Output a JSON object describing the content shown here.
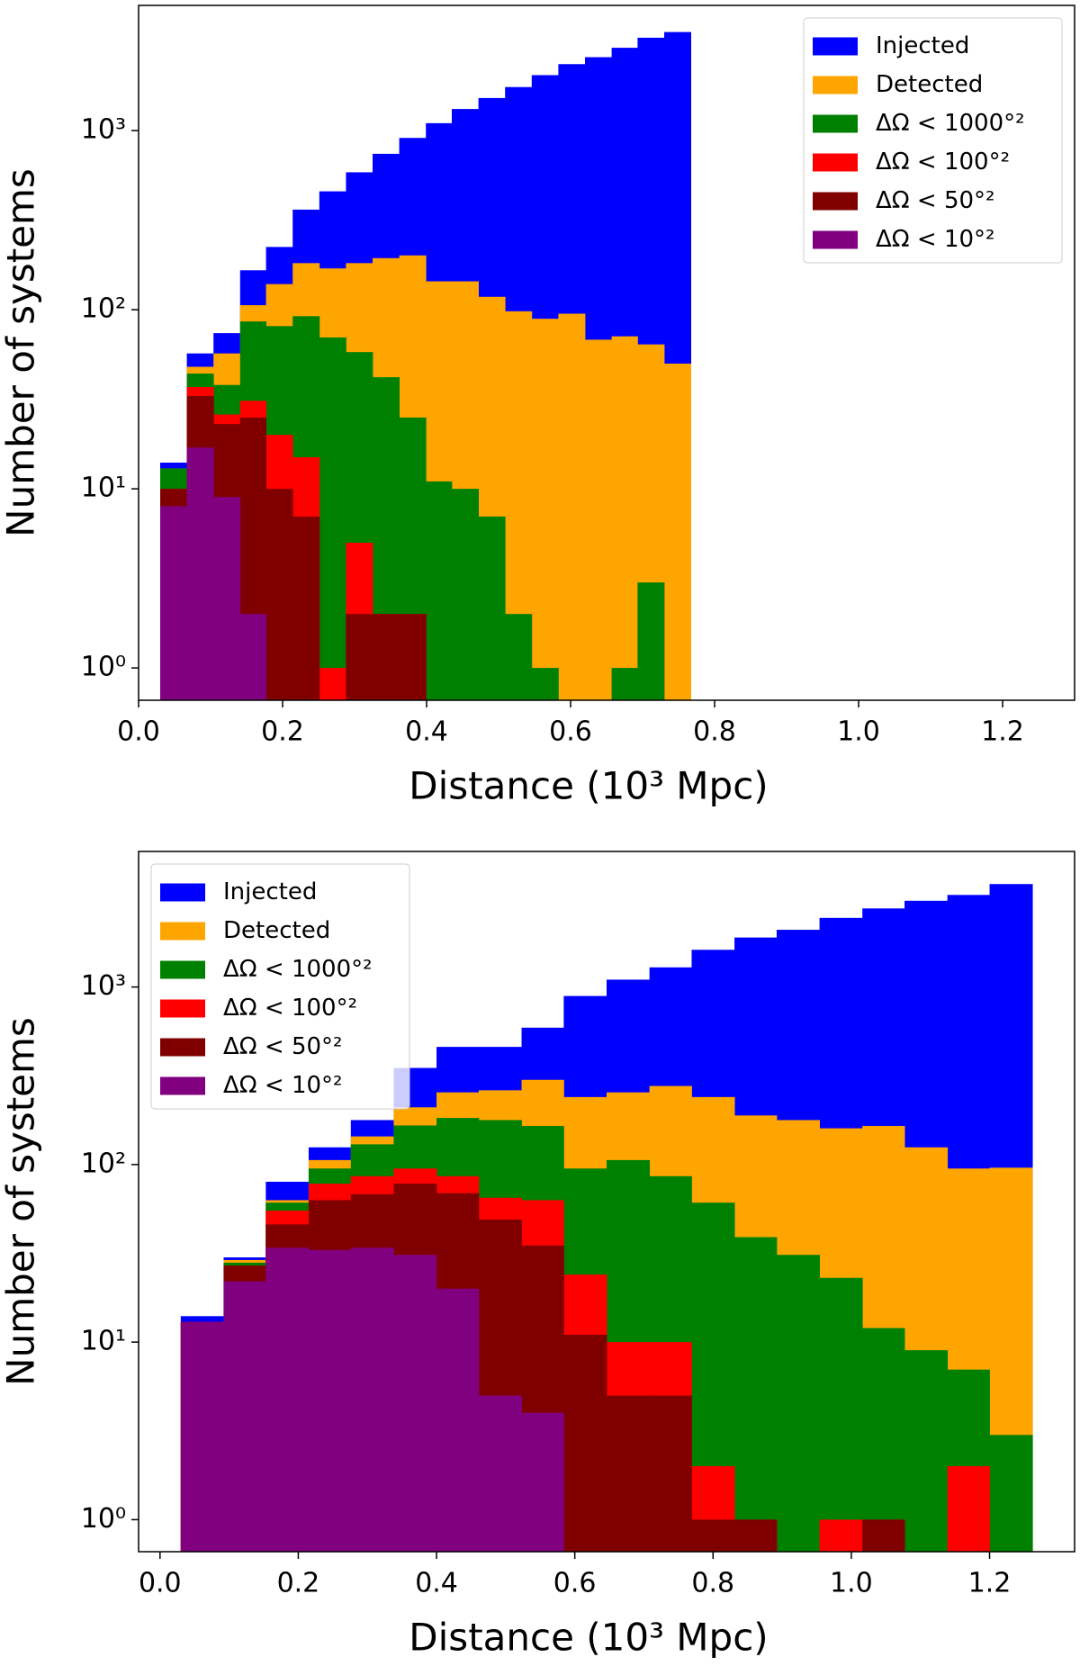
{
  "chart_data": [
    {
      "type": "histogram",
      "log_y": true,
      "legend": "upper right",
      "x_label": "Distance (10³ Mpc)",
      "y_label": "Number of systems",
      "xlim": [
        0,
        1.3
      ],
      "xticks": [
        {
          "value": 0,
          "label": "0.0"
        },
        0.2,
        0.4,
        0.6,
        0.8,
        {
          "value": 1,
          "label": "1.0"
        },
        1.2
      ],
      "ylim": [
        0.66,
        5000
      ],
      "yticks": [
        {
          "value": 1,
          "label": "10⁰"
        },
        {
          "value": 10,
          "label": "10¹"
        },
        {
          "value": 100,
          "label": "10²"
        },
        {
          "value": 1000,
          "label": "10³"
        }
      ],
      "bins": [
        0.03,
        0.067,
        0.104,
        0.141,
        0.177,
        0.214,
        0.251,
        0.288,
        0.325,
        0.362,
        0.399,
        0.435,
        0.472,
        0.509,
        0.546,
        0.583,
        0.62,
        0.657,
        0.693,
        0.73,
        0.767
      ],
      "series": [
        {
          "name": "Injected",
          "color": "#0000ff",
          "values": [
            14,
            57,
            74,
            166,
            224,
            362,
            458,
            585,
            742,
            910,
            1100,
            1320,
            1520,
            1750,
            2040,
            2350,
            2570,
            2900,
            3300,
            3550
          ]
        },
        {
          "name": "Detected",
          "color": "#ffa500",
          "values": [
            13,
            48,
            57,
            106,
            139,
            182,
            170,
            182,
            194,
            201,
            144,
            144,
            118,
            98,
            89,
            95,
            68,
            71,
            64,
            50
          ]
        },
        {
          "name": "ΔΩ < 1000°²",
          "color": "#008000",
          "values": [
            13,
            44,
            38,
            86,
            81,
            92,
            70,
            58,
            42,
            25,
            11,
            10,
            7,
            2,
            1,
            0,
            0,
            1,
            3,
            0
          ]
        },
        {
          "name": "ΔΩ < 100°²",
          "color": "#ff0000",
          "values": [
            10,
            37,
            26,
            31,
            20,
            15,
            1,
            5,
            2,
            2,
            0,
            0,
            0,
            0,
            0,
            0,
            0,
            0,
            0,
            0
          ]
        },
        {
          "name": "ΔΩ < 50°²",
          "color": "#800000",
          "values": [
            10,
            33,
            23,
            25,
            10,
            7,
            0,
            2,
            2,
            2,
            0,
            0,
            0,
            0,
            0,
            0,
            0,
            0,
            0,
            0
          ]
        },
        {
          "name": "ΔΩ < 10°²",
          "color": "#800080",
          "values": [
            8,
            17,
            9,
            2,
            0,
            0,
            0,
            0,
            0,
            0,
            0,
            0,
            0,
            0,
            0,
            0,
            0,
            0,
            0,
            0
          ]
        }
      ]
    },
    {
      "type": "histogram",
      "log_y": true,
      "legend": "upper left",
      "x_label": "Distance (10³ Mpc)",
      "y_label": "Number of systems",
      "xlim": [
        -0.031,
        1.323
      ],
      "xticks": [
        {
          "value": 0,
          "label": "0.0"
        },
        0.2,
        0.4,
        0.6,
        0.8,
        {
          "value": 1,
          "label": "1.0"
        },
        1.2
      ],
      "ylim": [
        0.66,
        5800
      ],
      "yticks": [
        {
          "value": 1,
          "label": "10⁰"
        },
        {
          "value": 10,
          "label": "10¹"
        },
        {
          "value": 100,
          "label": "10²"
        },
        {
          "value": 1000,
          "label": "10³"
        }
      ],
      "bins": [
        0.03,
        0.092,
        0.153,
        0.215,
        0.276,
        0.338,
        0.4,
        0.461,
        0.523,
        0.584,
        0.646,
        0.708,
        0.769,
        0.831,
        0.892,
        0.954,
        1.016,
        1.077,
        1.139,
        1.2,
        1.262
      ],
      "series": [
        {
          "name": "Injected",
          "color": "#0000ff",
          "values": [
            14,
            30,
            80,
            125,
            178,
            350,
            460,
            460,
            590,
            890,
            1100,
            1290,
            1620,
            1900,
            2100,
            2450,
            2770,
            3060,
            3300,
            3800
          ]
        },
        {
          "name": "Detected",
          "color": "#ffa500",
          "values": [
            13,
            29,
            63,
            106,
            144,
            210,
            255,
            262,
            300,
            240,
            255,
            277,
            240,
            189,
            178,
            160,
            165,
            125,
            95,
            96
          ]
        },
        {
          "name": "ΔΩ < 1000°²",
          "color": "#008000",
          "values": [
            13,
            28,
            61,
            95,
            130,
            166,
            183,
            178,
            165,
            95,
            106,
            86,
            61,
            39,
            31,
            23,
            12,
            9,
            7,
            3
          ]
        },
        {
          "name": "ΔΩ < 100°²",
          "color": "#ff0000",
          "values": [
            13,
            27,
            55,
            78,
            86,
            95,
            86,
            65,
            63,
            24,
            10,
            10,
            2,
            1,
            0,
            1,
            1,
            0,
            2,
            0
          ]
        },
        {
          "name": "ΔΩ < 50°²",
          "color": "#800000",
          "values": [
            13,
            27,
            46,
            63,
            68,
            78,
            69,
            49,
            35,
            11,
            5,
            5,
            1,
            1,
            0,
            0,
            1,
            0,
            0,
            0
          ]
        },
        {
          "name": "ΔΩ < 10°²",
          "color": "#800080",
          "values": [
            13,
            22,
            34,
            33,
            34,
            31,
            20,
            5,
            4,
            0,
            0,
            0,
            0,
            0,
            0,
            0,
            0,
            0,
            0,
            0
          ]
        }
      ]
    }
  ]
}
